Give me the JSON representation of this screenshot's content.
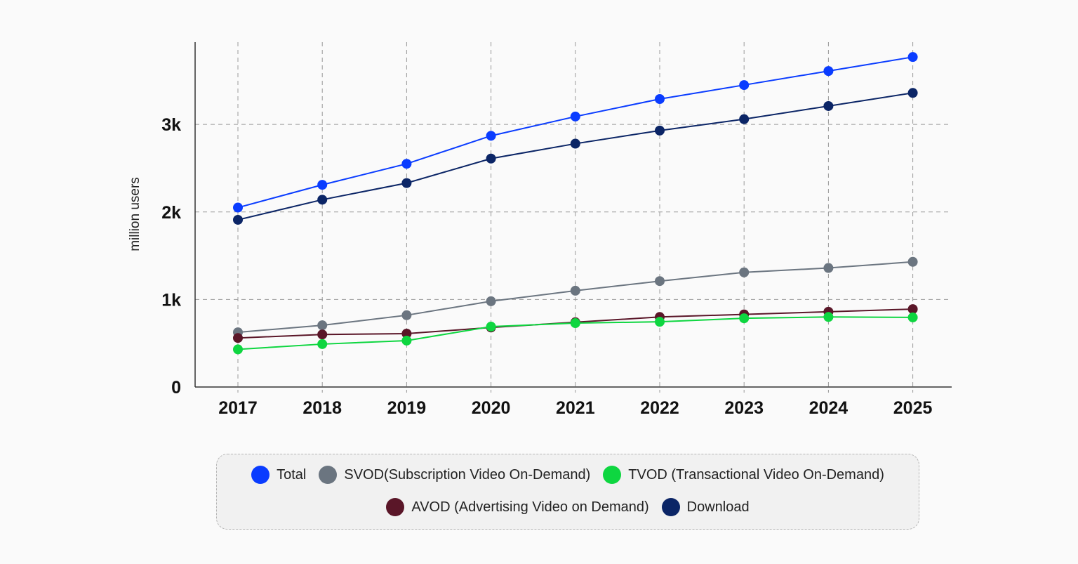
{
  "chart_data": {
    "type": "line",
    "title": "",
    "xlabel": "",
    "ylabel": "million users",
    "categories": [
      "2017",
      "2018",
      "2019",
      "2020",
      "2021",
      "2022",
      "2023",
      "2024",
      "2025"
    ],
    "yticks": [
      0,
      1000,
      2000,
      3000
    ],
    "ytick_labels": [
      "0",
      "1k",
      "2k",
      "3k"
    ],
    "ylim": [
      0,
      3940
    ],
    "grid": true,
    "legend_placement": "bottom",
    "series": [
      {
        "name": "Total",
        "color": "#0a3cff",
        "values": [
          2050,
          2310,
          2550,
          2870,
          3090,
          3290,
          3450,
          3610,
          3770
        ]
      },
      {
        "name": "Download",
        "color": "#0b2566",
        "values": [
          1910,
          2140,
          2330,
          2610,
          2780,
          2930,
          3060,
          3210,
          3360
        ]
      },
      {
        "name": "SVOD(Subscription Video On-Demand)",
        "color": "#6b7580",
        "values": [
          625,
          705,
          820,
          980,
          1100,
          1210,
          1310,
          1360,
          1430
        ]
      },
      {
        "name": "AVOD (Advertising Video on Demand)",
        "color": "#5a1628",
        "values": [
          560,
          600,
          610,
          680,
          740,
          800,
          830,
          860,
          890
        ]
      },
      {
        "name": "TVOD (Transactional Video On-Demand)",
        "color": "#0ed640",
        "values": [
          430,
          490,
          530,
          690,
          730,
          745,
          785,
          800,
          795
        ]
      }
    ],
    "legend_rows": [
      [
        "Total",
        "SVOD(Subscription Video On-Demand)",
        "TVOD (Transactional Video On-Demand)"
      ],
      [
        "AVOD (Advertising Video on Demand)",
        "Download"
      ]
    ]
  }
}
